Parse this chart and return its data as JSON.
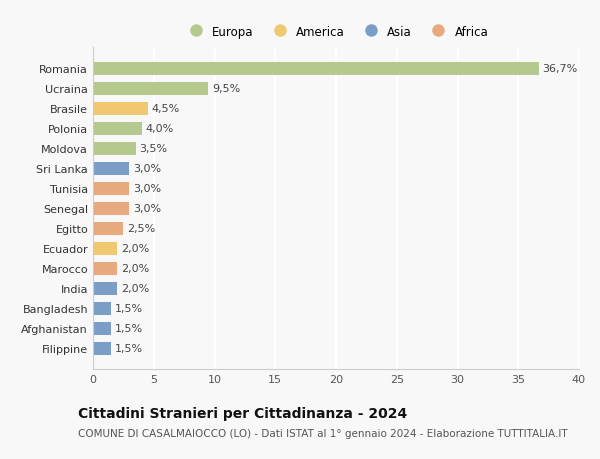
{
  "countries": [
    "Romania",
    "Ucraina",
    "Brasile",
    "Polonia",
    "Moldova",
    "Sri Lanka",
    "Tunisia",
    "Senegal",
    "Egitto",
    "Ecuador",
    "Marocco",
    "India",
    "Bangladesh",
    "Afghanistan",
    "Filippine"
  ],
  "values": [
    36.7,
    9.5,
    4.5,
    4.0,
    3.5,
    3.0,
    3.0,
    3.0,
    2.5,
    2.0,
    2.0,
    2.0,
    1.5,
    1.5,
    1.5
  ],
  "labels": [
    "36,7%",
    "9,5%",
    "4,5%",
    "4,0%",
    "3,5%",
    "3,0%",
    "3,0%",
    "3,0%",
    "2,5%",
    "2,0%",
    "2,0%",
    "2,0%",
    "1,5%",
    "1,5%",
    "1,5%"
  ],
  "continents": [
    "Europa",
    "Europa",
    "America",
    "Europa",
    "Europa",
    "Asia",
    "Africa",
    "Africa",
    "Africa",
    "America",
    "Africa",
    "Asia",
    "Asia",
    "Asia",
    "Asia"
  ],
  "continent_colors": {
    "Europa": "#b5c98e",
    "America": "#f0c870",
    "Asia": "#7b9ec7",
    "Africa": "#e8a97e"
  },
  "legend_order": [
    "Europa",
    "America",
    "Asia",
    "Africa"
  ],
  "title": "Cittadini Stranieri per Cittadinanza - 2024",
  "subtitle": "COMUNE DI CASALMAIOCCO (LO) - Dati ISTAT al 1° gennaio 2024 - Elaborazione TUTTITALIA.IT",
  "xlim": [
    0,
    40
  ],
  "xticks": [
    0,
    5,
    10,
    15,
    20,
    25,
    30,
    35,
    40
  ],
  "background_color": "#f8f8f8",
  "grid_color": "#ffffff",
  "bar_height": 0.65,
  "label_fontsize": 8,
  "tick_fontsize": 8,
  "title_fontsize": 10,
  "subtitle_fontsize": 7.5
}
